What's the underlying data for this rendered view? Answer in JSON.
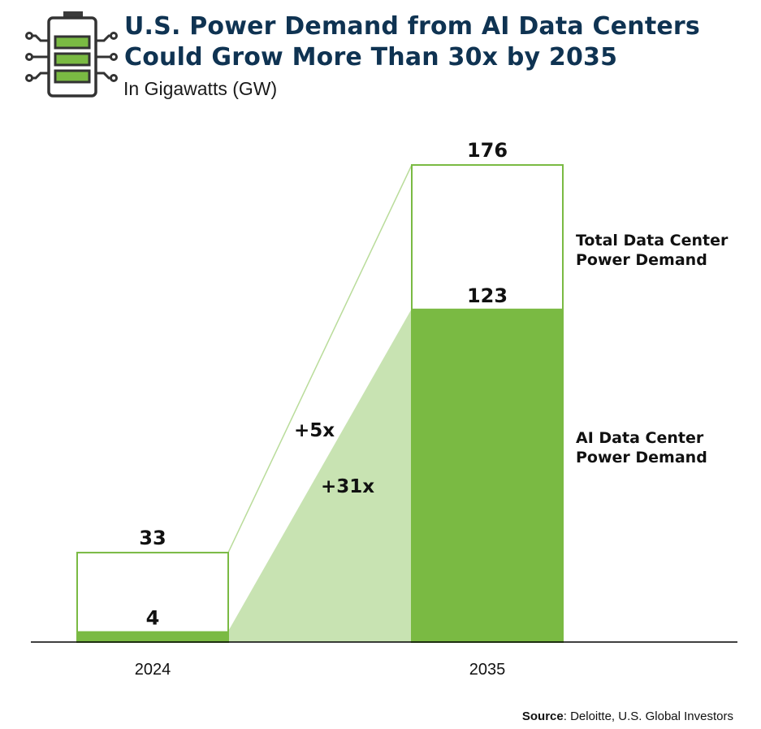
{
  "header": {
    "title": "U.S. Power Demand from AI Data Centers Could Grow More Than 30x by 2035",
    "subtitle": "In Gigawatts (GW)",
    "icon": "battery-circuit-icon"
  },
  "source": {
    "label": "Source",
    "text": ": Deloitte, U.S. Global Investors"
  },
  "colors": {
    "title": "#0f3352",
    "ai_bar": "#7aba43",
    "total_outline": "#7aba43",
    "growth_fill": "#c8e3b2",
    "growth_line": "#b9dc9a",
    "axis": "#000000"
  },
  "chart_data": {
    "type": "bar",
    "title": "U.S. Power Demand from AI Data Centers Could Grow More Than 30x by 2035",
    "ylabel": "Gigawatts (GW)",
    "categories": [
      "2024",
      "2035"
    ],
    "series": [
      {
        "name": "Total Data Center Power Demand",
        "values": [
          33,
          176
        ],
        "labels": [
          "33",
          "176"
        ]
      },
      {
        "name": "AI Data Center Power Demand",
        "values": [
          4,
          123
        ],
        "labels": [
          "4",
          "123"
        ]
      }
    ],
    "legend": [
      {
        "series": "Total Data Center Power Demand",
        "lines": [
          "Total Data Center",
          "Power Demand"
        ]
      },
      {
        "series": "AI Data Center Power Demand",
        "lines": [
          "AI Data Center",
          "Power Demand"
        ]
      }
    ],
    "annotations": [
      {
        "text": "+5x",
        "series": "Total Data Center Power Demand"
      },
      {
        "text": "+31x",
        "series": "AI Data Center Power Demand"
      }
    ],
    "ylim": [
      0,
      176
    ],
    "grid": false
  }
}
